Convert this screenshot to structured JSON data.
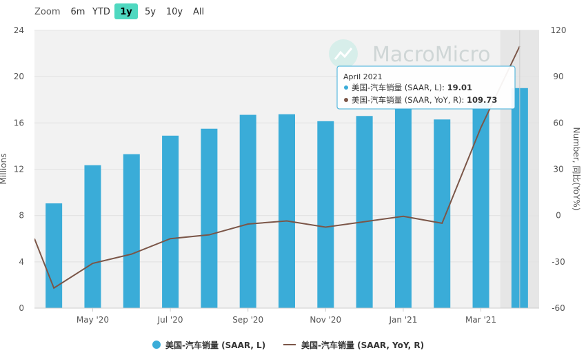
{
  "zoom": {
    "label": "Zoom",
    "buttons": [
      "6m",
      "YTD",
      "1y",
      "5y",
      "10y",
      "All"
    ],
    "active": "1y"
  },
  "watermark": "MacroMicro",
  "colors": {
    "bar": "#3aacd8",
    "line": "#7b5648",
    "active_zoom": "#4fd8c0",
    "plot_bg": "#f2f2f2",
    "highlight_bg": "#e6e6e6"
  },
  "tooltip": {
    "title": "April 2021",
    "rows": [
      {
        "label": "美国-汽车销量 (SAAR, L): ",
        "value": "19.01",
        "color": "#3aacd8"
      },
      {
        "label": "美国-汽车销量 (SAAR, YoY, R): ",
        "value": "109.73",
        "color": "#7b5648"
      }
    ]
  },
  "chart_data": {
    "type": "bar",
    "categories": [
      "2020-04",
      "2020-05",
      "2020-06",
      "2020-07",
      "2020-08",
      "2020-09",
      "2020-10",
      "2020-11",
      "2020-12",
      "2021-01",
      "2021-02",
      "2021-03",
      "2021-04"
    ],
    "x_tick_labels": [
      "May '20",
      "Jul '20",
      "Sep '20",
      "Nov '20",
      "Jan '21",
      "Mar '21"
    ],
    "series": [
      {
        "name": "美国-汽车销量 (SAAR, L)",
        "type": "bar",
        "axis": "left",
        "values": [
          9.05,
          12.35,
          13.3,
          14.9,
          15.5,
          16.7,
          16.75,
          16.15,
          16.6,
          17.35,
          16.3,
          17.8,
          19.01
        ]
      },
      {
        "name": "美国-汽车销量 (SAAR, YoY, R)",
        "type": "line",
        "axis": "right",
        "values": [
          -47,
          -31,
          -25,
          -15,
          -12.5,
          -5.5,
          -3.5,
          -7.5,
          -4,
          -0.5,
          -5,
          57,
          109.73
        ]
      }
    ],
    "y_left": {
      "label": "Millions",
      "min": 0,
      "max": 24,
      "ticks": [
        0,
        4,
        8,
        12,
        16,
        20,
        24
      ]
    },
    "y_right": {
      "label": "Number, 同比(YoY%)",
      "min": -60,
      "max": 120,
      "ticks": [
        -60,
        -30,
        0,
        30,
        60,
        90,
        120
      ]
    },
    "grid": true,
    "legend": "bottom"
  }
}
